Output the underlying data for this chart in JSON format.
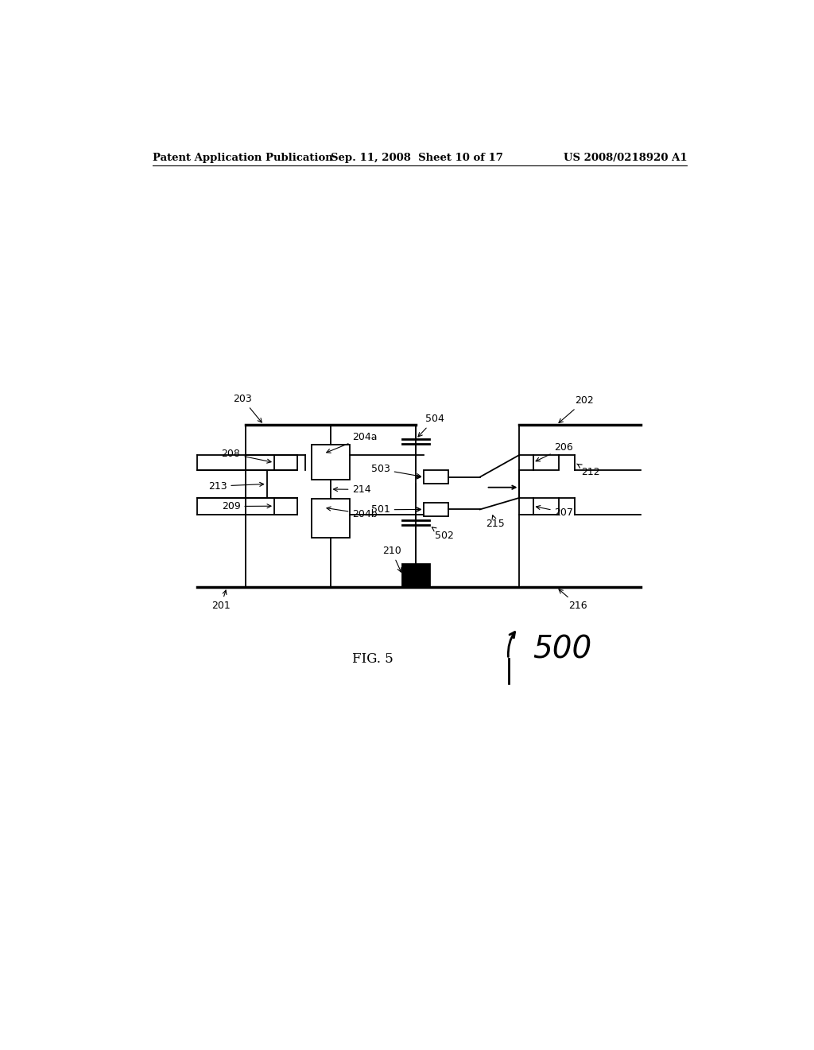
{
  "bg_color": "#ffffff",
  "header_left": "Patent Application Publication",
  "header_mid": "Sep. 11, 2008  Sheet 10 of 17",
  "header_right": "US 2008/0218920 A1",
  "fig_label": "FIG. 5",
  "fig_number": "500"
}
